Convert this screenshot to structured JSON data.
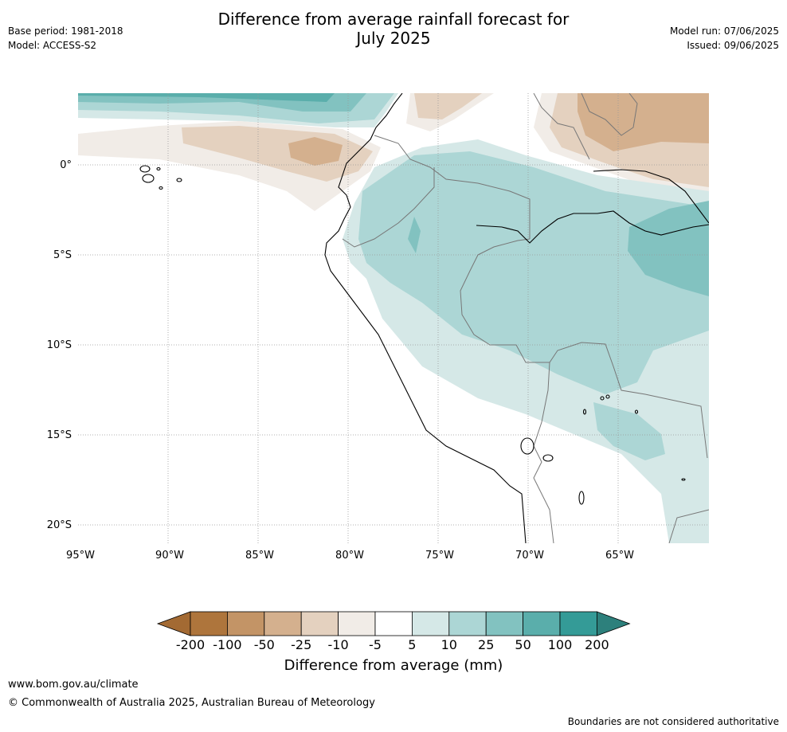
{
  "header": {
    "title_line1": "Difference from average rainfall forecast for",
    "title_line2": "July 2025",
    "base_period": "Base period: 1981-2018",
    "model": "Model: ACCESS-S2",
    "model_run": "Model run: 07/06/2025",
    "issued": "Issued: 09/06/2025"
  },
  "map": {
    "lat_labels": [
      "0°",
      "5°S",
      "10°S",
      "15°S",
      "20°S"
    ],
    "lon_labels": [
      "95°W",
      "90°W",
      "85°W",
      "80°W",
      "75°W",
      "70°W",
      "65°W"
    ]
  },
  "legend": {
    "title": "Difference from average (mm)",
    "tick_labels": [
      "-200",
      "-100",
      "-50",
      "-25",
      "-10",
      "-5",
      "5",
      "10",
      "25",
      "50",
      "100",
      "200"
    ],
    "colors": [
      "#a36a33",
      "#ae753c",
      "#c39466",
      "#d4b08e",
      "#e4d1bf",
      "#f1ece7",
      "#ffffff",
      "#d5e8e7",
      "#acd6d5",
      "#82c2c0",
      "#5aaeab",
      "#349b97",
      "#2d807c"
    ]
  },
  "footer": {
    "url": "www.bom.gov.au/climate",
    "copyright": "© Commonwealth of Australia 2025, Australian Bureau of Meteorology",
    "disclaimer": "Boundaries are not considered authoritative"
  }
}
